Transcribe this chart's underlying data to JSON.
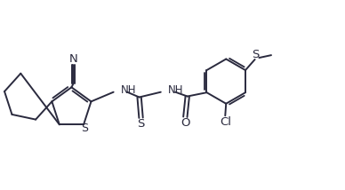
{
  "bg_color": "#ffffff",
  "line_color": "#2a2a3e",
  "line_width": 1.4,
  "font_size": 8.5,
  "figsize": [
    3.88,
    2.14
  ],
  "dpi": 100,
  "xlim": [
    0,
    8.0
  ],
  "ylim": [
    0.5,
    4.5
  ]
}
